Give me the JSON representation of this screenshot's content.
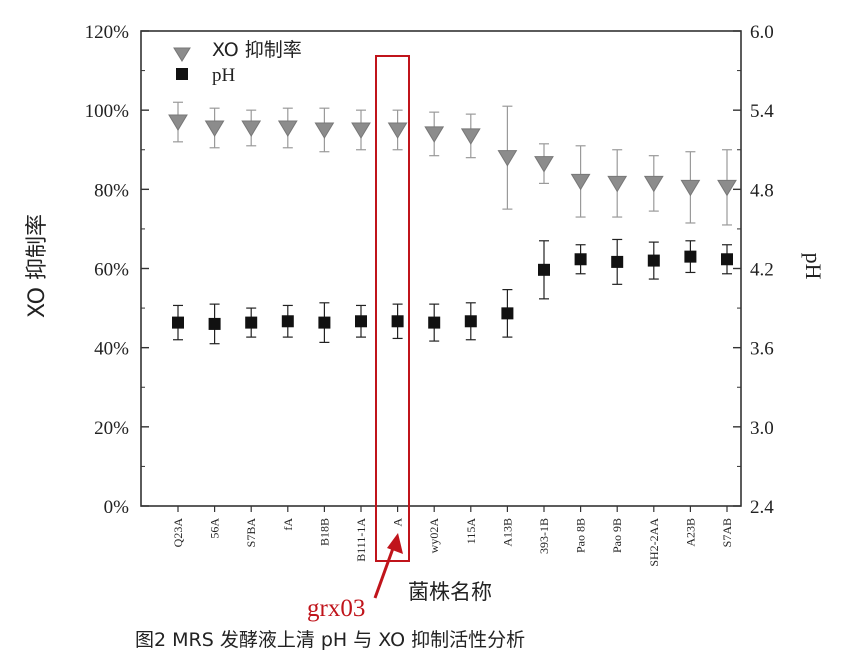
{
  "chart_data": {
    "type": "scatter",
    "categories": [
      "Q23A",
      "56A",
      "S7BA",
      "fA",
      "B18B",
      "B111-1A",
      "A",
      "wy02A",
      "115A",
      "A13B",
      "393-1B",
      "Pao 8B",
      "Pao 9B",
      "SH2-2AA",
      "A23B",
      "S7AB"
    ],
    "xlabel": "菌株名称",
    "ylabel_left": "XO 抑制率",
    "ylabel_right": "pH",
    "ylim_left": [
      0,
      120
    ],
    "ylim_right": [
      2.4,
      6.0
    ],
    "yticks_left": [
      "0%",
      "20%",
      "40%",
      "60%",
      "80%",
      "100%",
      "120%"
    ],
    "yticks_right": [
      "2.4",
      "3.0",
      "3.6",
      "4.2",
      "4.8",
      "5.4",
      "6.0"
    ],
    "legend_position": "top-left",
    "series": [
      {
        "name": "XO 抑制率",
        "axis": "left",
        "marker": "triangle-down",
        "color": "#8c8c8c",
        "values": [
          97,
          95.5,
          95.5,
          95.5,
          95,
          95,
          95,
          94,
          93.5,
          88,
          86.5,
          82,
          81.5,
          81.5,
          80.5,
          80.5
        ],
        "errors": [
          5,
          5,
          4.5,
          5,
          5.5,
          5,
          5,
          5.5,
          5.5,
          13,
          5,
          9,
          8.5,
          7,
          9,
          9.5
        ]
      },
      {
        "name": "pH",
        "axis": "right",
        "marker": "square",
        "color": "#111111",
        "values": [
          3.79,
          3.78,
          3.79,
          3.8,
          3.79,
          3.8,
          3.8,
          3.79,
          3.8,
          3.86,
          4.19,
          4.27,
          4.25,
          4.26,
          4.29,
          4.27
        ],
        "errors": [
          0.13,
          0.15,
          0.11,
          0.12,
          0.15,
          0.12,
          0.13,
          0.14,
          0.14,
          0.18,
          0.22,
          0.11,
          0.17,
          0.14,
          0.12,
          0.11
        ]
      }
    ]
  },
  "annotation": {
    "label": "grx03",
    "color": "#c0141b"
  },
  "caption": "图2 MRS 发酵液上清 pH 与 XO 抑制活性分析"
}
